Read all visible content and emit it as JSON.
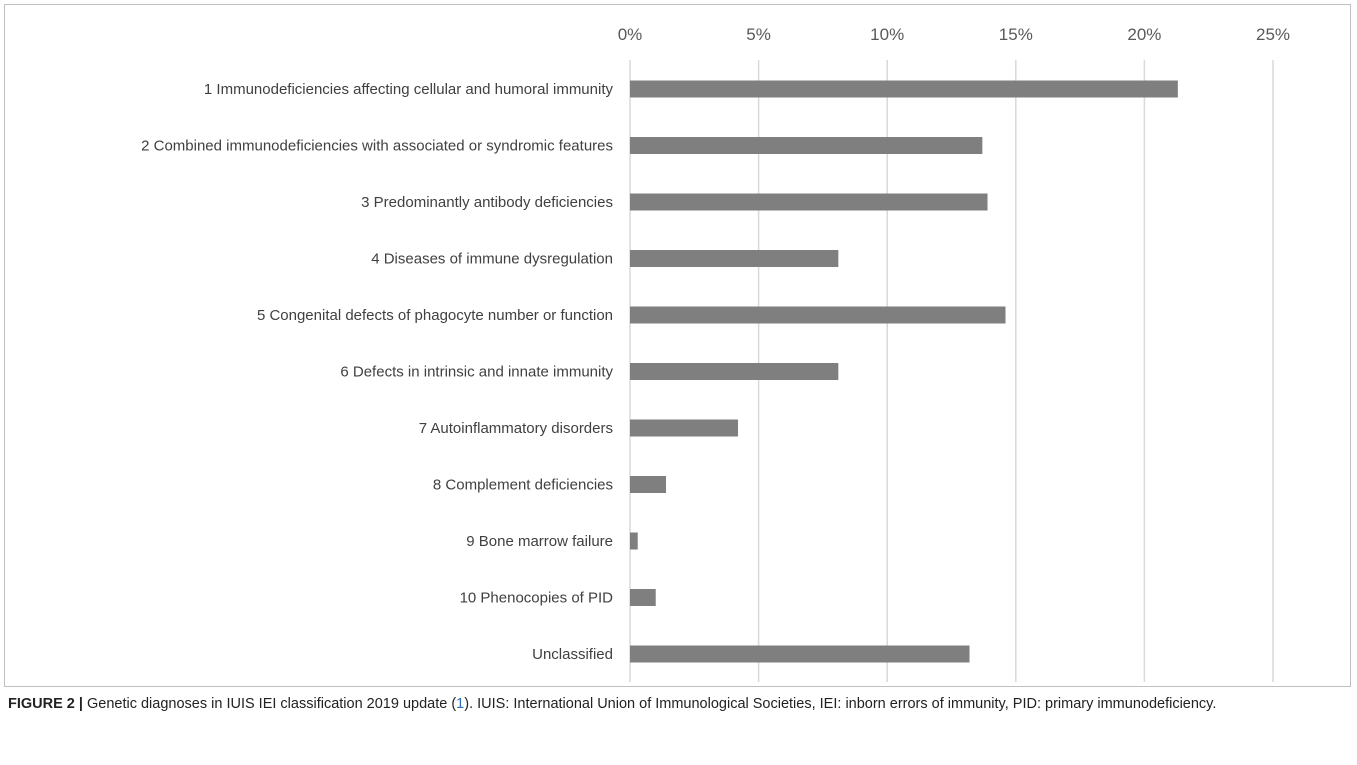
{
  "chart_data": {
    "type": "bar",
    "orientation": "horizontal",
    "categories": [
      "1 Immunodeficiencies affecting cellular and humoral immunity",
      "2 Combined immunodeficiencies with associated or syndromic features",
      "3 Predominantly antibody deficiencies",
      "4 Diseases of immune dysregulation",
      "5 Congenital defects of phagocyte number or function",
      "6 Defects in intrinsic and innate immunity",
      "7 Autoinflammatory disorders",
      "8 Complement deficiencies",
      "9 Bone marrow failure",
      "10 Phenocopies of PID",
      "Unclassified"
    ],
    "values": [
      21.3,
      13.7,
      13.9,
      8.1,
      14.6,
      8.1,
      4.2,
      1.4,
      0.3,
      1.0,
      13.2
    ],
    "xlim": [
      0,
      25
    ],
    "x_ticks": [
      "0%",
      "5%",
      "10%",
      "15%",
      "20%",
      "25%"
    ],
    "x_tick_values": [
      0,
      5,
      10,
      15,
      20,
      25
    ],
    "x_axis_position": "top",
    "grid": true,
    "legend": "none",
    "bar_color": "#7f7f7f",
    "grid_color": "#d9d9d9",
    "title": "",
    "xlabel": "",
    "ylabel": ""
  },
  "caption": {
    "label": "FIGURE 2 |",
    "text_before_ref": " Genetic diagnoses in IUIS IEI classification 2019 update (",
    "ref": "1",
    "text_after_ref": "). IUIS: International Union of Immunological Societies, IEI: inborn errors of immunity, PID: primary immunodeficiency."
  }
}
